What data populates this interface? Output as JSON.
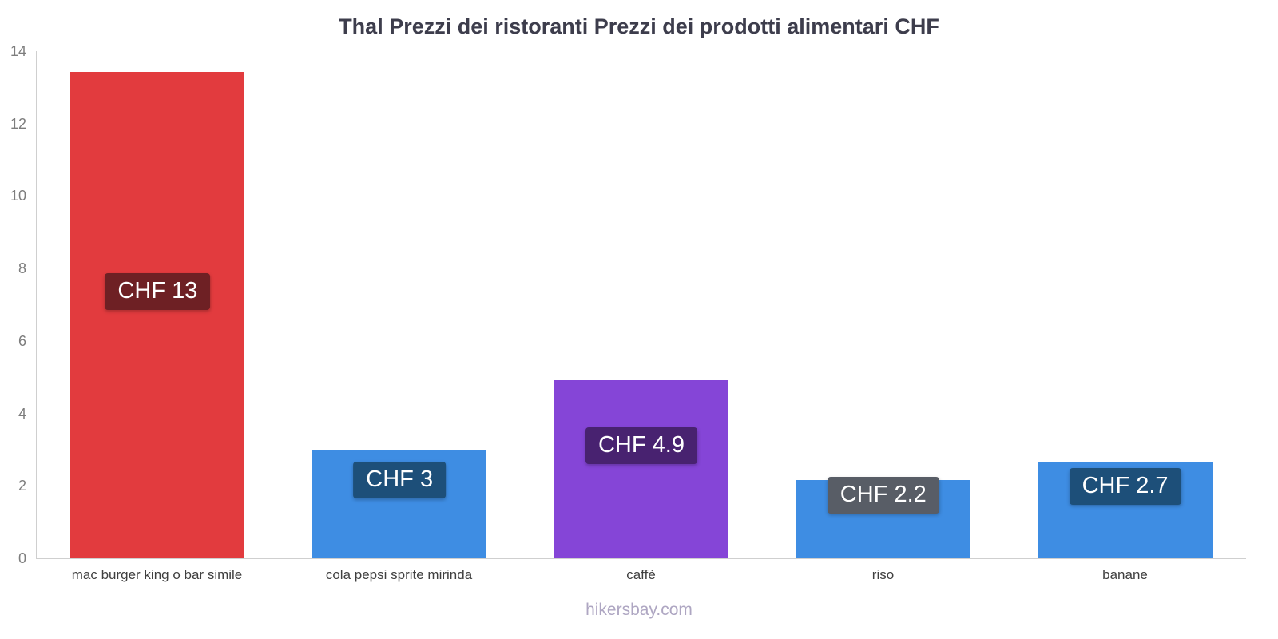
{
  "footer": "hikersbay.com",
  "chart_data": {
    "type": "bar",
    "title": "Thal Prezzi dei ristoranti Prezzi dei prodotti alimentari CHF",
    "xlabel": "",
    "ylabel": "",
    "ylim": [
      0,
      14
    ],
    "yticks": [
      0,
      2,
      4,
      6,
      8,
      10,
      12,
      14
    ],
    "grid": false,
    "legend": "none",
    "categories": [
      "mac burger king o bar simile",
      "cola pepsi sprite mirinda",
      "caffè",
      "riso",
      "banane"
    ],
    "values": [
      13.4,
      3,
      4.9,
      2.15,
      2.65
    ],
    "value_labels": [
      "CHF 13",
      "CHF 3",
      "CHF 4.9",
      "CHF 2.2",
      "CHF 2.7"
    ],
    "bar_colors": [
      "#e23b3e",
      "#3e8de3",
      "#8545d7",
      "#3e8de3",
      "#3e8de3"
    ],
    "label_bg_colors": [
      "#6e2024",
      "#1d4f79",
      "#482270",
      "#585d66",
      "#1d4f79"
    ],
    "currency": "CHF"
  }
}
